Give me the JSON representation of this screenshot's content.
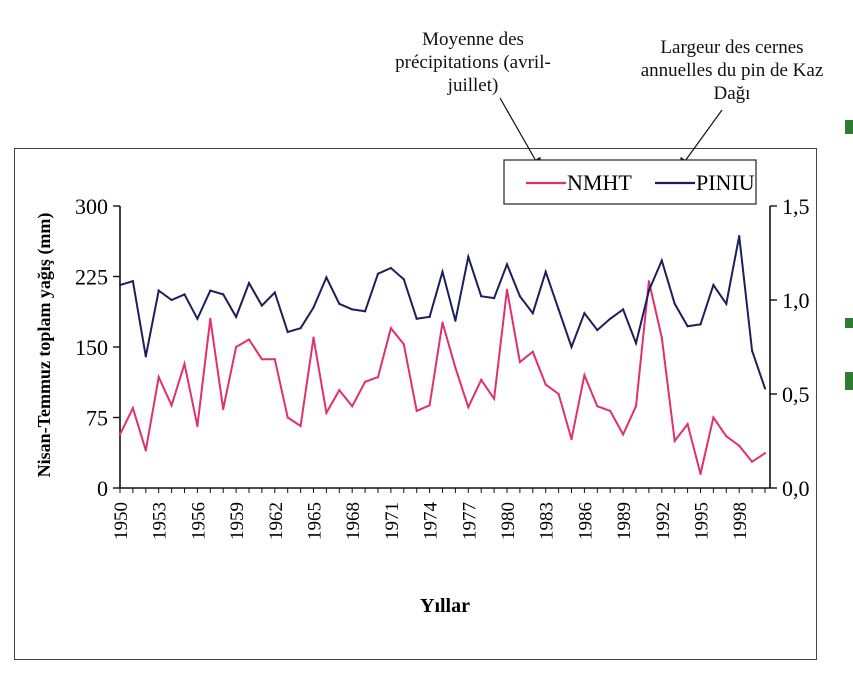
{
  "annotations": {
    "left": [
      "Moyenne des",
      "précipitations (avril-",
      "juillet)"
    ],
    "right": [
      "Largeur des cernes",
      "annuelles du pin de Kaz",
      "Dağı"
    ]
  },
  "chart_data": {
    "type": "line",
    "xlabel": "Yıllar",
    "ylabel": "Nisan-Temmuz toplam yağış (mm)",
    "ylim": [
      0,
      300
    ],
    "y2lim": [
      0,
      1.5
    ],
    "yticks": [
      "0",
      "75",
      "150",
      "225",
      "300"
    ],
    "y2ticks": [
      "0,0",
      "0,5",
      "1,0",
      "1,5"
    ],
    "xticks": [
      "1950",
      "1953",
      "1956",
      "1959",
      "1962",
      "1965",
      "1968",
      "1971",
      "1974",
      "1977",
      "1980",
      "1983",
      "1986",
      "1989",
      "1992",
      "1995",
      "1998"
    ],
    "x": [
      1950,
      1951,
      1952,
      1953,
      1954,
      1955,
      1956,
      1957,
      1958,
      1959,
      1960,
      1961,
      1962,
      1963,
      1964,
      1965,
      1966,
      1967,
      1968,
      1969,
      1970,
      1971,
      1972,
      1973,
      1974,
      1975,
      1976,
      1977,
      1978,
      1979,
      1980,
      1981,
      1982,
      1983,
      1984,
      1985,
      1986,
      1987,
      1988,
      1989,
      1990,
      1991,
      1992,
      1993,
      1994,
      1995,
      1996,
      1997,
      1998,
      1999,
      2000
    ],
    "legend_position": "top-right",
    "grid": false,
    "series": [
      {
        "name": "NMHT",
        "axis": "left",
        "color": "#e0306e",
        "values": [
          57,
          85,
          40,
          118,
          88,
          132,
          66,
          180,
          84,
          150,
          158,
          137,
          137,
          75,
          66,
          160,
          80,
          104,
          87,
          113,
          118,
          170,
          153,
          82,
          88,
          176,
          128,
          86,
          115,
          95,
          211,
          134,
          145,
          110,
          100,
          52,
          120,
          87,
          82,
          57,
          87,
          220,
          160,
          50,
          68,
          15,
          75,
          55,
          45,
          28,
          37
        ]
      },
      {
        "name": "PINIU",
        "axis": "right",
        "color": "#1c1f5c",
        "values": [
          1.08,
          1.1,
          0.7,
          1.05,
          1.0,
          1.03,
          0.9,
          1.05,
          1.03,
          0.91,
          1.09,
          0.97,
          1.04,
          0.83,
          0.85,
          0.96,
          1.12,
          0.98,
          0.95,
          0.94,
          1.14,
          1.17,
          1.11,
          0.9,
          0.91,
          1.15,
          0.89,
          1.23,
          1.02,
          1.01,
          1.19,
          1.02,
          0.93,
          1.15,
          0.95,
          0.75,
          0.93,
          0.84,
          0.9,
          0.95,
          0.77,
          1.05,
          1.21,
          0.98,
          0.86,
          0.87,
          1.08,
          0.98,
          1.34,
          0.73,
          0.53
        ]
      }
    ]
  }
}
